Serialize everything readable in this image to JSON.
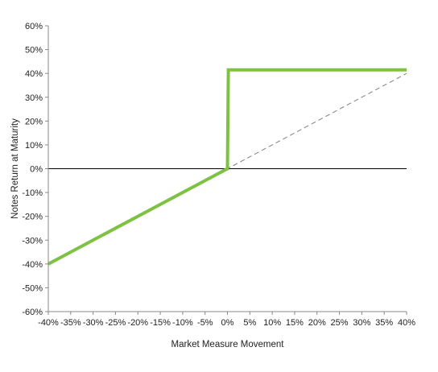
{
  "chart_data": {
    "type": "line",
    "title": "",
    "xlabel": "Market Measure Movement",
    "ylabel": "Notes Return at Maturity",
    "xlim": [
      -40,
      40
    ],
    "ylim": [
      -60,
      60
    ],
    "x_ticks": [
      -40,
      -35,
      -30,
      -25,
      -20,
      -15,
      -10,
      -5,
      0,
      5,
      10,
      15,
      20,
      25,
      30,
      35,
      40
    ],
    "y_ticks": [
      -60,
      -50,
      -40,
      -30,
      -20,
      -10,
      0,
      10,
      20,
      30,
      40,
      50,
      60
    ],
    "x_tick_labels": [
      "-40%",
      "-35%",
      "-30%",
      "-25%",
      "-20%",
      "-15%",
      "-10%",
      "-5%",
      "0%",
      "5%",
      "10%",
      "15%",
      "20%",
      "25%",
      "30%",
      "35%",
      "40%"
    ],
    "y_tick_labels": [
      "-60%",
      "-50%",
      "-40%",
      "-30%",
      "-20%",
      "-10%",
      "0%",
      "10%",
      "20%",
      "30%",
      "40%",
      "50%",
      "60%"
    ],
    "grid": false,
    "legend": "none",
    "series": [
      {
        "color": "#7dc242",
        "style": "solid",
        "points": [
          [
            -40,
            -40
          ],
          [
            0,
            0
          ],
          [
            0.2,
            41.5
          ],
          [
            40,
            41.5
          ]
        ]
      },
      {
        "color": "#7f7f7f",
        "style": "dashed",
        "points": [
          [
            -40,
            -40
          ],
          [
            40,
            40
          ]
        ]
      }
    ],
    "zero_line": {
      "y": 0,
      "color": "#000000"
    }
  }
}
